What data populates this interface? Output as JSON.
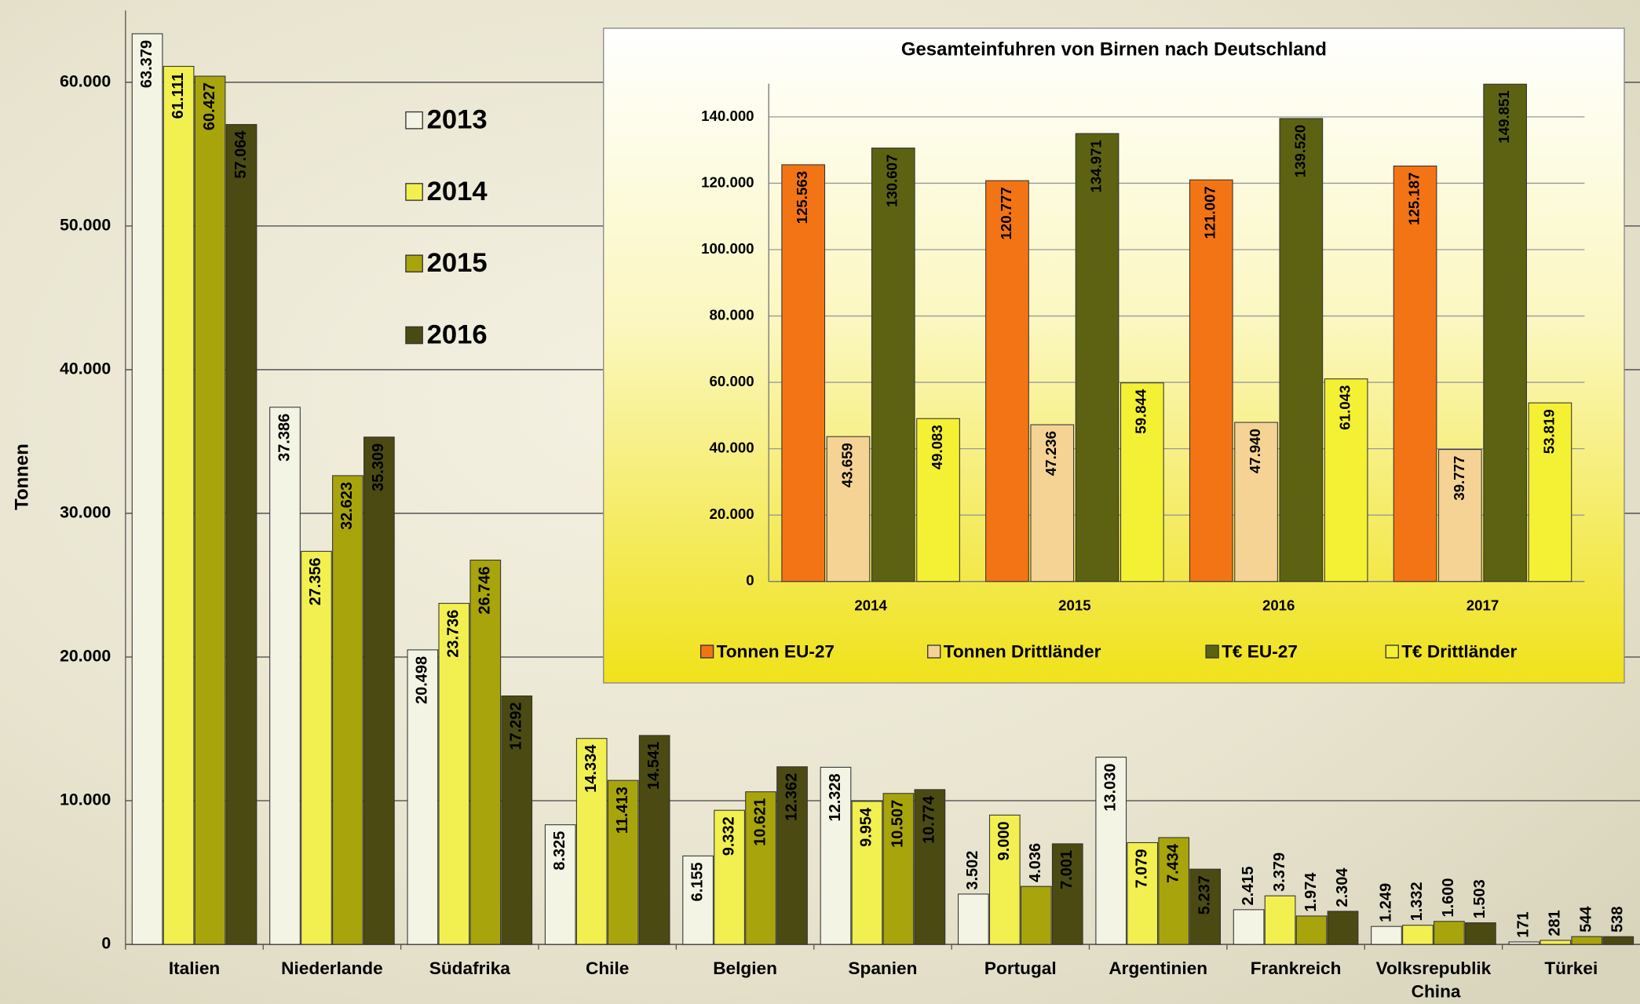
{
  "chart_data": [
    {
      "type": "bar",
      "y_label": "Tonnen",
      "categories": [
        "Italien",
        "Niederlande",
        "Südafrika",
        "Chile",
        "Belgien",
        "Spanien",
        "Portugal",
        "Argentinien",
        "Frankreich",
        "Volksrepublik China",
        "Türkei"
      ],
      "series": [
        {
          "name": "2013",
          "color": "#f4f4e4",
          "values": [
            63379,
            37386,
            20498,
            8325,
            6155,
            12328,
            3502,
            13030,
            2415,
            1249,
            171
          ],
          "value_labels": [
            "63.379",
            "37.386",
            "20.498",
            "8.325",
            "6.155",
            "12.328",
            "3.502",
            "13.030",
            "2.415",
            "1.249",
            "171"
          ]
        },
        {
          "name": "2014",
          "color": "#f2f050",
          "values": [
            61111,
            27356,
            23736,
            14334,
            9332,
            9954,
            9000,
            7079,
            3379,
            1332,
            281
          ],
          "value_labels": [
            "61.111",
            "27.356",
            "23.736",
            "14.334",
            "9.332",
            "9.954",
            "9.000",
            "7.079",
            "3.379",
            "1.332",
            "281"
          ]
        },
        {
          "name": "2015",
          "color": "#a8a40c",
          "values": [
            60427,
            32623,
            26746,
            11413,
            10621,
            10507,
            4036,
            7434,
            1974,
            1600,
            544
          ],
          "value_labels": [
            "60.427",
            "32.623",
            "26.746",
            "11.413",
            "10.621",
            "10.507",
            "4.036",
            "7.434",
            "1.974",
            "1.600",
            "544"
          ]
        },
        {
          "name": "2016",
          "color": "#4a4a12",
          "values": [
            57064,
            35309,
            17292,
            14541,
            12362,
            10774,
            7001,
            5237,
            2304,
            1503,
            538
          ],
          "value_labels": [
            "57.064",
            "35.309",
            "17.292",
            "14.541",
            "12.362",
            "10.774",
            "7.001",
            "5.237",
            "2.304",
            "1.503",
            "538"
          ]
        }
      ],
      "ylim": [
        0,
        65000
      ],
      "yticks": [
        0,
        {
          "value": 10000,
          "label": "10.000"
        },
        {
          "value": 20000,
          "label": "20.000"
        },
        {
          "value": 30000,
          "label": "30.000"
        },
        {
          "value": 40000,
          "label": "40.000"
        },
        {
          "value": 50000,
          "label": "50.000"
        },
        {
          "value": 60000,
          "label": "60.000"
        }
      ],
      "grid": true
    },
    {
      "type": "bar",
      "title": "Gesamteinfuhren von Birnen nach Deutschland",
      "categories": [
        "2014",
        "2015",
        "2016",
        "2017"
      ],
      "series": [
        {
          "name": "Tonnen EU-27",
          "color": "#f37415",
          "values": [
            125563,
            120777,
            121007,
            125187
          ],
          "value_labels": [
            "125.563",
            "120.777",
            "121.007",
            "125.187"
          ]
        },
        {
          "name": "Tonnen Drittländer",
          "color": "#f5d394",
          "values": [
            43659,
            47236,
            47940,
            39777
          ],
          "value_labels": [
            "43.659",
            "47.236",
            "47.940",
            "39.777"
          ]
        },
        {
          "name": "T€ EU-27",
          "color": "#5c6212",
          "values": [
            130607,
            134971,
            139520,
            149851
          ],
          "value_labels": [
            "130.607",
            "134.971",
            "139.520",
            "149.851"
          ]
        },
        {
          "name": "T€ Drittländer",
          "color": "#f4f034",
          "values": [
            49083,
            59844,
            61043,
            53819
          ],
          "value_labels": [
            "49.083",
            "59.844",
            "61.043",
            "53.819"
          ]
        }
      ],
      "ylim": [
        0,
        150000
      ],
      "yticks": [
        0,
        {
          "value": 20000,
          "label": "20.000"
        },
        {
          "value": 40000,
          "label": "40.000"
        },
        {
          "value": 60000,
          "label": "60.000"
        },
        {
          "value": 80000,
          "label": "80.000"
        },
        {
          "value": 100000,
          "label": "100.000"
        },
        {
          "value": 120000,
          "label": "120.000"
        },
        {
          "value": 140000,
          "label": "140.000"
        }
      ],
      "grid": true
    }
  ]
}
